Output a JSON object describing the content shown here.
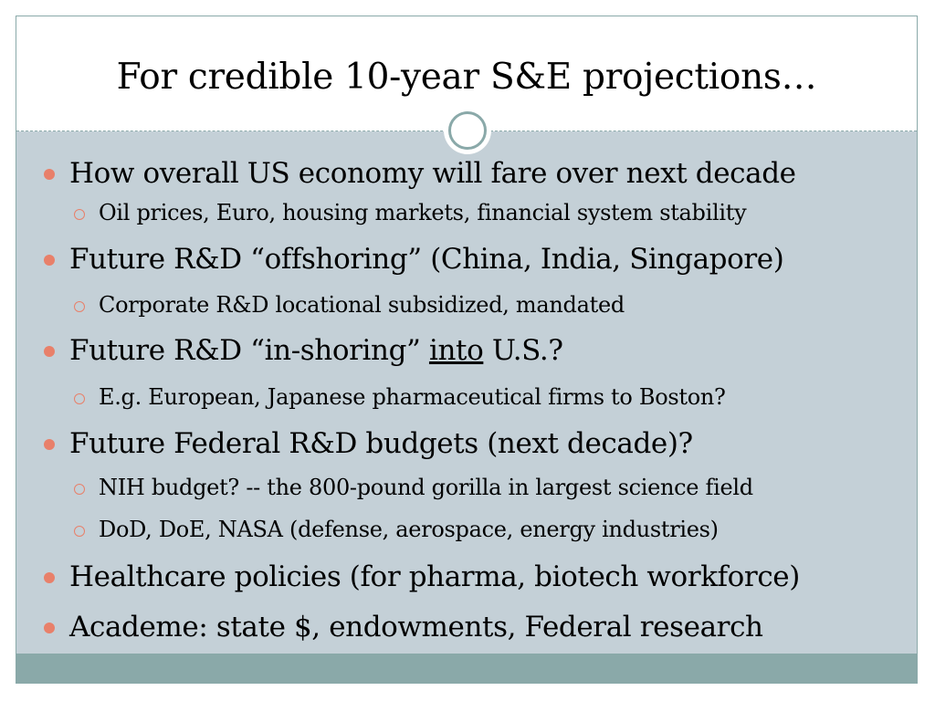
{
  "slide": {
    "title": "For credible 10-year S&E projections…",
    "bullets": [
      {
        "text": "How overall US economy will fare over next decade",
        "sub": [
          "Oil prices, Euro, housing markets, financial system stability"
        ]
      },
      {
        "text": "Future R&D “offshoring” (China, India, Singapore)",
        "sub": [
          "Corporate R&D locational subsidized, mandated"
        ]
      },
      {
        "text_before": "Future R&D “in-shoring” ",
        "text_underlined": "into",
        "text_after": " U.S.?",
        "sub": [
          "E.g. European, Japanese pharmaceutical firms to Boston?"
        ]
      },
      {
        "text": "Future Federal R&D budgets (next decade)?",
        "sub": [
          "NIH budget?  -- the 800-pound gorilla in largest science field",
          "DoD, DoE, NASA (defense, aerospace, energy industries)"
        ]
      },
      {
        "text": "Healthcare policies (for pharma, biotech workforce)",
        "sub": []
      },
      {
        "text": "Academe:  state $, endowments, Federal research",
        "sub": []
      }
    ]
  },
  "colors": {
    "content_background": "#c4d0d7",
    "accent_band": "#8aa9a9",
    "bullet": "#e8806a"
  }
}
